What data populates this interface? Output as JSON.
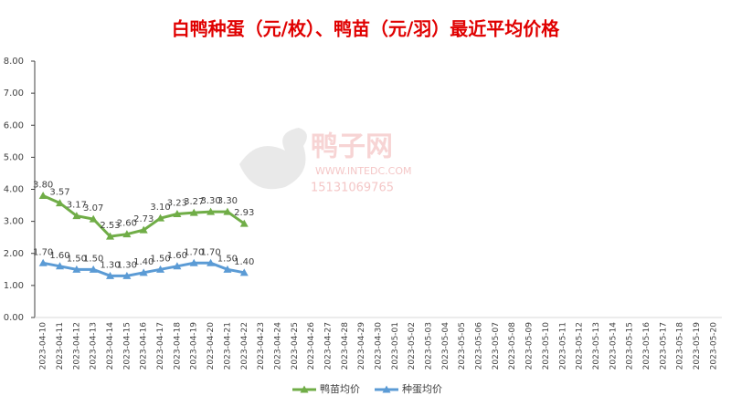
{
  "chart_data": {
    "type": "line",
    "title": "白鸭种蛋（元/枚）、鸭苗（元/羽）最近平均价格",
    "watermark": [
      "鸭子网",
      "WWW.INTEDC.COM",
      "15131069765"
    ],
    "categories": [
      "2023-04-10",
      "2023-04-11",
      "2023-04-12",
      "2023-04-13",
      "2023-04-14",
      "2023-04-15",
      "2023-04-16",
      "2023-04-17",
      "2023-04-18",
      "2023-04-19",
      "2023-04-20",
      "2023-04-21",
      "2023-04-22",
      "2023-04-23",
      "2023-04-24",
      "2023-04-25",
      "2023-04-26",
      "2023-04-27",
      "2023-04-28",
      "2023-04-29",
      "2023-04-30",
      "2023-05-01",
      "2023-05-02",
      "2023-05-03",
      "2023-05-04",
      "2023-05-05",
      "2023-05-06",
      "2023-05-07",
      "2023-05-08",
      "2023-05-09",
      "2023-05-10",
      "2023-05-11",
      "2023-05-12",
      "2023-05-13",
      "2023-05-14",
      "2023-05-15",
      "2023-05-16",
      "2023-05-17",
      "2023-05-18",
      "2023-05-19",
      "2023-05-20"
    ],
    "series": [
      {
        "name": "鸭苗均价",
        "color": "#70ad47",
        "values": [
          3.8,
          3.57,
          3.17,
          3.07,
          2.53,
          2.6,
          2.73,
          3.1,
          3.23,
          3.27,
          3.3,
          3.3,
          2.93,
          null,
          null,
          null,
          null,
          null,
          null,
          null,
          null,
          null,
          null,
          null,
          null,
          null,
          null,
          null,
          null,
          null,
          null,
          null,
          null,
          null,
          null,
          null,
          null,
          null,
          null,
          null,
          null
        ],
        "value_labels": [
          "3.80",
          "3.57",
          "3.17",
          "3.07",
          "2.53",
          "2.60",
          "2.73",
          "3.10",
          "3.23",
          "3.27",
          "3.30",
          "3.30",
          "2.93",
          null,
          null,
          null,
          null,
          null,
          null,
          null,
          null,
          null,
          null,
          null,
          null,
          null,
          null,
          null,
          null,
          null,
          null,
          null,
          null,
          null,
          null,
          null,
          null,
          null,
          null,
          null,
          null
        ]
      },
      {
        "name": "种蛋均价",
        "color": "#5b9bd5",
        "values": [
          1.7,
          1.6,
          1.5,
          1.5,
          1.3,
          1.3,
          1.4,
          1.5,
          1.6,
          1.7,
          1.7,
          1.5,
          1.4,
          null,
          null,
          null,
          null,
          null,
          null,
          null,
          null,
          null,
          null,
          null,
          null,
          null,
          null,
          null,
          null,
          null,
          null,
          null,
          null,
          null,
          null,
          null,
          null,
          null,
          null,
          null,
          null
        ],
        "value_labels": [
          "1.70",
          "1.60",
          "1.50",
          "1.50",
          "1.30",
          "1.30",
          "1.40",
          "1.50",
          "1.60",
          "1.70",
          "1.70",
          "1.50",
          "1.40",
          null,
          null,
          null,
          null,
          null,
          null,
          null,
          null,
          null,
          null,
          null,
          null,
          null,
          null,
          null,
          null,
          null,
          null,
          null,
          null,
          null,
          null,
          null,
          null,
          null,
          null,
          null,
          null
        ]
      }
    ],
    "ylim": [
      0,
      8
    ],
    "yticks": [
      {
        "value": 0,
        "label": "0.00"
      },
      {
        "value": 1,
        "label": "1.00"
      },
      {
        "value": 2,
        "label": "2.00"
      },
      {
        "value": 3,
        "label": "3.00"
      },
      {
        "value": 4,
        "label": "4.00"
      },
      {
        "value": 5,
        "label": "5.00"
      },
      {
        "value": 6,
        "label": "6.00"
      },
      {
        "value": 7,
        "label": "7.00"
      },
      {
        "value": 8,
        "label": "8.00"
      }
    ],
    "legend": "bottom"
  }
}
